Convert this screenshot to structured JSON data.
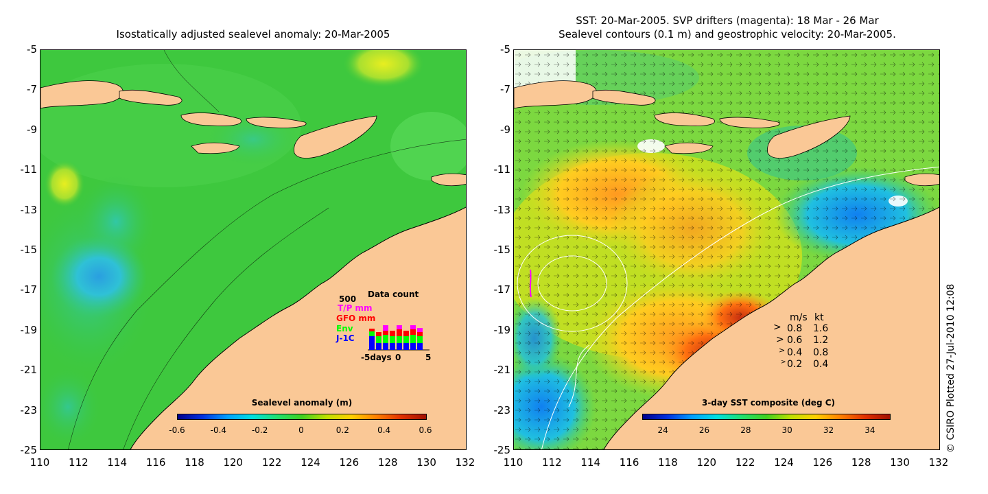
{
  "left_panel": {
    "title": "Isostatically adjusted sealevel anomaly: 20-Mar-2005",
    "y_ticks": [
      "-5",
      "-7",
      "-9",
      "-11",
      "-13",
      "-15",
      "-17",
      "-19",
      "-21",
      "-23",
      "-25"
    ],
    "x_ticks": [
      "110",
      "112",
      "114",
      "116",
      "118",
      "120",
      "122",
      "124",
      "126",
      "128",
      "130",
      "132"
    ],
    "colorbar": {
      "title": "Sealevel anomaly (m)",
      "ticks": [
        "-0.6",
        "-0.4",
        "-0.2",
        "0",
        "0.2",
        "0.4",
        "0.6"
      ]
    },
    "data_count": {
      "title": "Data count",
      "max_label": "500",
      "series": [
        {
          "name": "T/P mm",
          "color": "#ff00ff"
        },
        {
          "name": "GFO mm",
          "color": "#ff0000"
        },
        {
          "name": "Env",
          "color": "#00ff00"
        },
        {
          "name": "J-1C",
          "color": "#0000ff"
        }
      ],
      "x_labels": [
        "-5days",
        "0",
        "5"
      ]
    }
  },
  "right_panel": {
    "title_line1": "SST: 20-Mar-2005. SVP drifters (magenta): 18 Mar - 26 Mar",
    "title_line2": "Sealevel contours (0.1 m) and geostrophic velocity: 20-Mar-2005.",
    "y_ticks": [
      "-5",
      "-7",
      "-9",
      "-11",
      "-13",
      "-15",
      "-17",
      "-19",
      "-21",
      "-23",
      "-25"
    ],
    "x_ticks": [
      "110",
      "112",
      "114",
      "116",
      "118",
      "120",
      "122",
      "124",
      "126",
      "128",
      "130",
      "132"
    ],
    "colorbar": {
      "title": "3-day SST composite (deg C)",
      "ticks": [
        "24",
        "26",
        "28",
        "30",
        "32",
        "34"
      ]
    },
    "velocity_legend": {
      "header_ms": "m/s",
      "header_kt": "kt",
      "rows": [
        {
          "ms": "0.8",
          "kt": "1.6"
        },
        {
          "ms": "0.6",
          "kt": "1.2"
        },
        {
          "ms": "0.4",
          "kt": "0.8"
        },
        {
          "ms": "0.2",
          "kt": "0.4"
        }
      ]
    }
  },
  "credit": "© CSIRO Plotted 27-Jul-2010 12:08",
  "colors": {
    "land": "#fac896",
    "sea_green": "#3cc83c",
    "coast": "#000000"
  }
}
